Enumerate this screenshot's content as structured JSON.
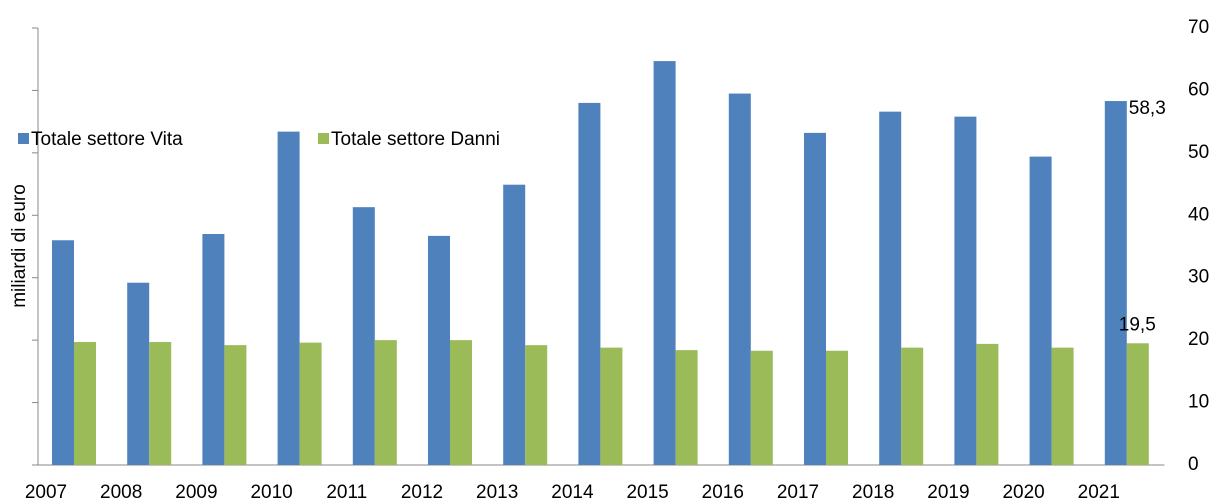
{
  "chart_data": {
    "type": "bar",
    "y_label": "miliardi di euro",
    "categories": [
      "2007",
      "2008",
      "2009",
      "2010",
      "2011",
      "2012",
      "2013",
      "2014",
      "2015",
      "2016",
      "2017",
      "2018",
      "2019",
      "2020",
      "2021"
    ],
    "series": [
      {
        "name": "Totale settore Vita",
        "color": "#4f81bd",
        "values": [
          36.0,
          29.2,
          37.0,
          53.4,
          41.3,
          36.7,
          44.9,
          58.0,
          64.7,
          59.5,
          53.2,
          56.6,
          55.8,
          49.4,
          58.3
        ],
        "value_labels": [
          null,
          null,
          null,
          null,
          null,
          null,
          null,
          null,
          null,
          null,
          null,
          null,
          null,
          null,
          "58,3"
        ]
      },
      {
        "name": "Totale settore Danni",
        "color": "#9bbb59",
        "values": [
          19.7,
          19.7,
          19.2,
          19.6,
          20.0,
          20.0,
          19.2,
          18.8,
          18.4,
          18.3,
          18.3,
          18.8,
          19.4,
          18.8,
          19.5
        ],
        "value_labels": [
          null,
          null,
          null,
          null,
          null,
          null,
          null,
          null,
          null,
          null,
          null,
          null,
          null,
          null,
          "19,5"
        ]
      }
    ],
    "ylim": [
      0,
      70
    ],
    "yticks": [
      0,
      10,
      20,
      30,
      40,
      50,
      60,
      70
    ],
    "legend": "upper-left"
  }
}
